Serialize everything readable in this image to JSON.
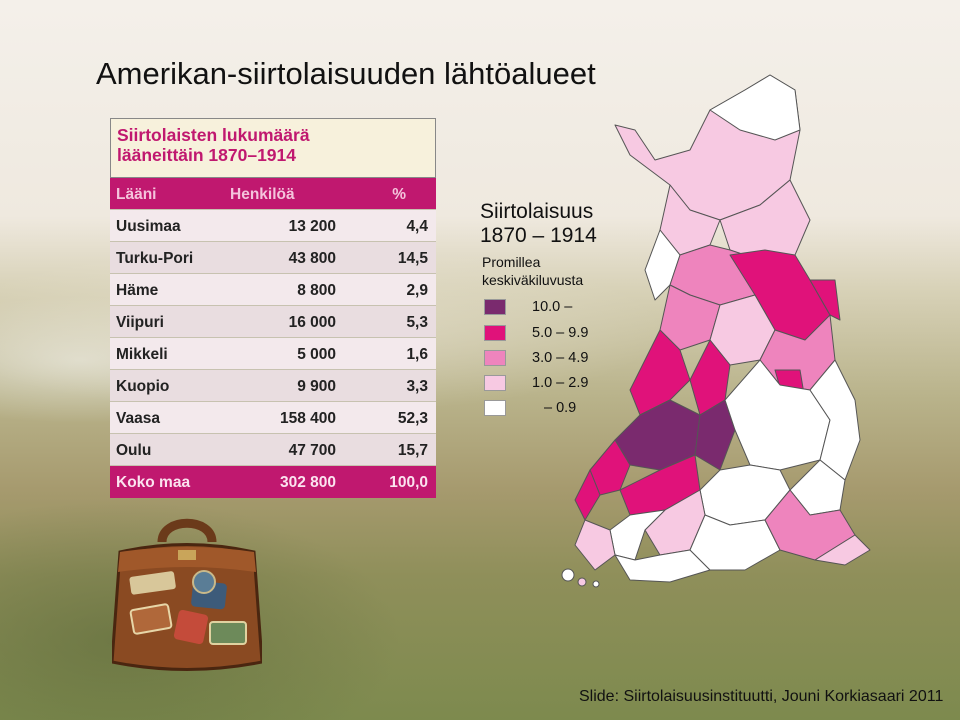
{
  "title": "Amerikan-siirtolaisuuden lähtöalueet",
  "table": {
    "caption_line1": "Siirtolaisten lukumäärä",
    "caption_line2": "lääneittäin 1870–1914",
    "headers": [
      "Lääni",
      "Henkilöä",
      "%"
    ],
    "rows": [
      {
        "region": "Uusimaa",
        "persons": "13 200",
        "pct": "4,4"
      },
      {
        "region": "Turku-Pori",
        "persons": "43 800",
        "pct": "14,5"
      },
      {
        "region": "Häme",
        "persons": "8 800",
        "pct": "2,9"
      },
      {
        "region": "Viipuri",
        "persons": "16 000",
        "pct": "5,3"
      },
      {
        "region": "Mikkeli",
        "persons": "5 000",
        "pct": "1,6"
      },
      {
        "region": "Kuopio",
        "persons": "9 900",
        "pct": "3,3"
      },
      {
        "region": "Vaasa",
        "persons": "158 400",
        "pct": "52,3"
      },
      {
        "region": "Oulu",
        "persons": "47 700",
        "pct": "15,7"
      }
    ],
    "total": {
      "region": "Koko maa",
      "persons": "302 800",
      "pct": "100,0"
    }
  },
  "legend": {
    "title_line1": "Siirtolaisuus",
    "title_line2": "1870 – 1914",
    "sub_line1": "Promillea",
    "sub_line2": "keskiväkiluvusta",
    "items": [
      {
        "label": "10.0 –",
        "color": "#7a2a6e"
      },
      {
        "label": "5.0 – 9.9",
        "color": "#e0127a"
      },
      {
        "label": "3.0 – 4.9",
        "color": "#ee84bd"
      },
      {
        "label": "1.0 – 2.9",
        "color": "#f7c9e2"
      },
      {
        "label": "– 0.9",
        "color": "#ffffff"
      }
    ]
  },
  "credit": "Slide: Siirtolaisuusinstituutti, Jouni Korkiasaari 2011",
  "map_icon": "finland-emigration-map",
  "suitcase_icon": "suitcase-icon"
}
